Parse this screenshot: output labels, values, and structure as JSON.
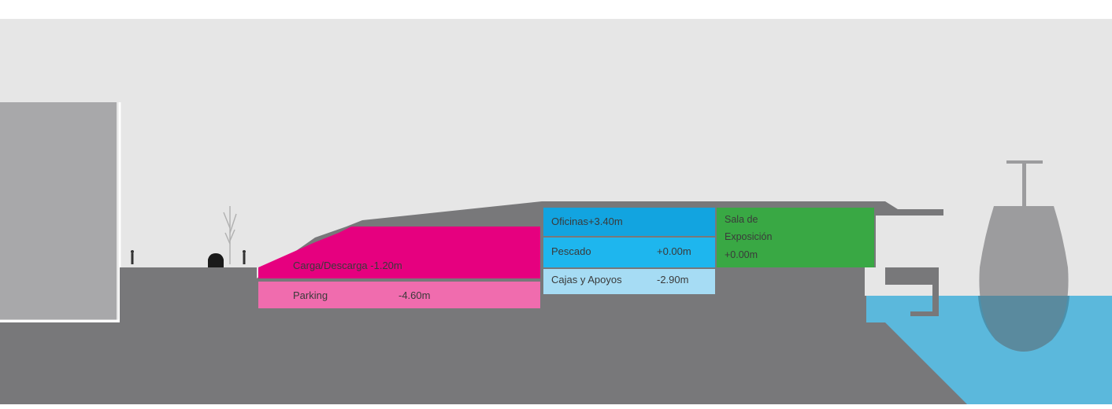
{
  "colors": {
    "sky": "#e6e6e6",
    "ground": "#78787a",
    "building": "#a8a8aa",
    "water": "#5bb8dc",
    "magenta": "#e6007f",
    "pink": "#f06cae",
    "blue": "#12a4e0",
    "blue_mid": "#1eb6ee",
    "blue_light": "#a6dcf4",
    "green": "#39a844",
    "ship": "#9c9c9e"
  },
  "labels": {
    "carga": "Carga/Descarga -1.20m",
    "parking": "Parking",
    "parking_level": "-4.60m",
    "oficinas": "Oficinas+3.40m",
    "pescado": "Pescado",
    "pescado_level": "+0.00m",
    "cajas": "Cajas y Apoyos",
    "cajas_level": "-2.90m",
    "sala_line1": "Sala de",
    "sala_line2": "Exposición",
    "sala_line3": "+0.00m"
  },
  "icons": [
    "person-icon",
    "tree-icon",
    "car-icon",
    "ship-icon"
  ]
}
